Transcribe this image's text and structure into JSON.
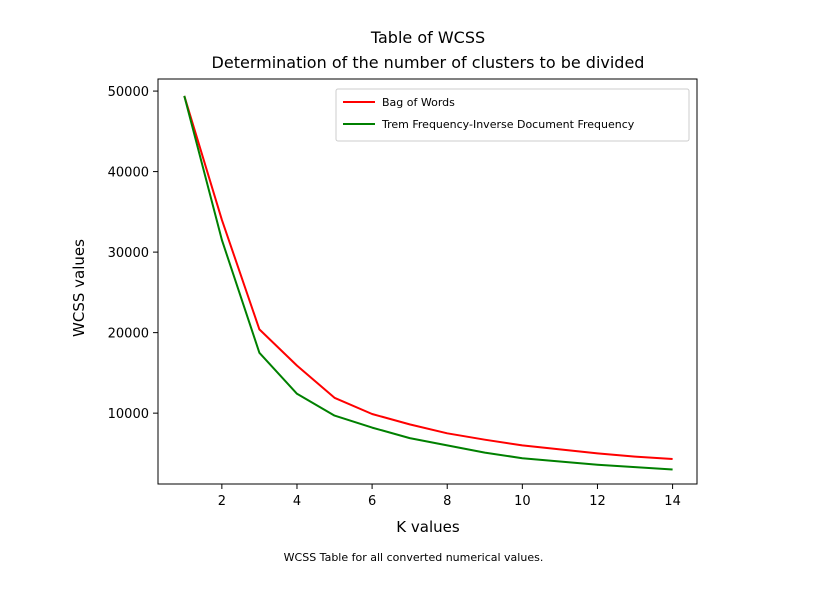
{
  "caption": "WCSS Table for all converted numerical values.",
  "chart_data": {
    "type": "line",
    "title": "Table of WCSS",
    "subtitle": "Determination of the number of clusters to be divided",
    "xlabel": "K values",
    "ylabel": "WCSS values",
    "xlim": [
      0.3,
      14.65
    ],
    "ylim": [
      1200,
      51500
    ],
    "xticks": [
      2,
      4,
      6,
      8,
      10,
      12,
      14
    ],
    "yticks": [
      10000,
      20000,
      30000,
      40000,
      50000
    ],
    "xtick_labels": [
      "2",
      "4",
      "6",
      "8",
      "10",
      "12",
      "14"
    ],
    "ytick_labels": [
      "10000",
      "20000",
      "30000",
      "40000",
      "50000"
    ],
    "x": [
      1,
      2,
      3,
      4,
      5,
      6,
      7,
      8,
      9,
      10,
      11,
      12,
      13,
      14
    ],
    "series": [
      {
        "name": "Bag of Words",
        "color": "#ff0000",
        "values": [
          49400,
          34000,
          20400,
          15900,
          11900,
          9900,
          8600,
          7500,
          6700,
          6000,
          5500,
          5000,
          4600,
          4300
        ]
      },
      {
        "name": "Trem Frequency-Inverse Document Frequency",
        "color": "#008000",
        "values": [
          49400,
          31500,
          17500,
          12400,
          9700,
          8200,
          6900,
          6000,
          5100,
          4400,
          4000,
          3600,
          3300,
          3000
        ]
      }
    ],
    "legend_position": "top-right",
    "grid": false
  }
}
